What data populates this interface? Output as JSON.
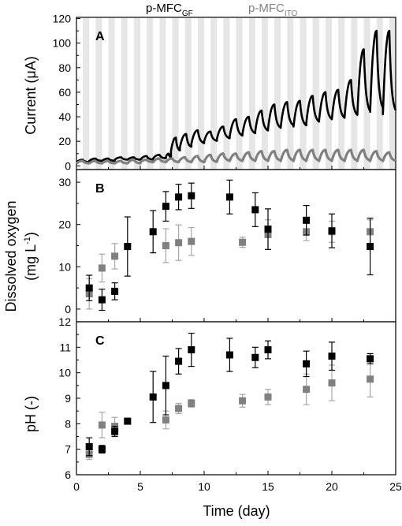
{
  "legend": {
    "series_a": {
      "main": "p-MFC",
      "sub": "GF",
      "color": "#000000"
    },
    "series_b": {
      "main": "p-MFC",
      "sub": "ITO",
      "color": "#808080"
    }
  },
  "x_axis": {
    "label": "Time (day)",
    "ticks": [
      "0",
      "5",
      "10",
      "15",
      "20",
      "25"
    ],
    "lim": [
      0,
      25
    ]
  },
  "colors": {
    "gf": "#000000",
    "ito": "#808080",
    "ito_error": "#a6a6a6",
    "light_band": "#e6e6e6"
  },
  "panels": [
    {
      "letter": "A",
      "ylabel": "Current (μA)",
      "ylim": [
        -3,
        121
      ],
      "yticks": [
        "0",
        "20",
        "40",
        "60",
        "80",
        "100",
        "120"
      ],
      "background": "alternating light/dark day-night bands (light periods shaded)"
    },
    {
      "letter": "B",
      "ylabel_line1": "Dissolved oxygen",
      "ylabel_line2": "(mg L",
      "ylabel_sup": "-1",
      "ylabel_close": ")",
      "ylim": [
        -3,
        33
      ],
      "yticks": [
        "0",
        "10",
        "20",
        "30"
      ]
    },
    {
      "letter": "C",
      "ylabel": "pH (-)",
      "ylim": [
        6,
        12
      ],
      "yticks": [
        "6",
        "7",
        "8",
        "9",
        "10",
        "11",
        "12"
      ]
    }
  ],
  "chart_data": [
    {
      "type": "line",
      "panel": "A",
      "xlabel": "Time (day)",
      "ylabel": "Current (μA)",
      "xlim": [
        0,
        25
      ],
      "ylim": [
        -3,
        121
      ],
      "note": "cyclic day/night current; values are the envelope of each light/dark cycle",
      "series": [
        {
          "name": "p-MFC_GF",
          "cycles": [
            {
              "start": 0.0,
              "peak": 5,
              "end": 3
            },
            {
              "start": 1.0,
              "peak": 6,
              "end": 4
            },
            {
              "start": 2.0,
              "peak": 6,
              "end": 4
            },
            {
              "start": 3.0,
              "peak": 7,
              "end": 5
            },
            {
              "start": 4.0,
              "peak": 7,
              "end": 5
            },
            {
              "start": 5.0,
              "peak": 8,
              "end": 5
            },
            {
              "start": 6.0,
              "peak": 9,
              "end": 6
            },
            {
              "start": 7.0,
              "peak": 10,
              "end": 7
            },
            {
              "start": 7.4,
              "peak": 23,
              "end": 12
            },
            {
              "start": 8.1,
              "peak": 26,
              "end": 15
            },
            {
              "start": 9.0,
              "peak": 29,
              "end": 18
            },
            {
              "start": 10.0,
              "peak": 28,
              "end": 20
            },
            {
              "start": 11.0,
              "peak": 32,
              "end": 22
            },
            {
              "start": 12.0,
              "peak": 38,
              "end": 24
            },
            {
              "start": 13.0,
              "peak": 40,
              "end": 26
            },
            {
              "start": 14.0,
              "peak": 45,
              "end": 28
            },
            {
              "start": 15.0,
              "peak": 50,
              "end": 30
            },
            {
              "start": 16.0,
              "peak": 52,
              "end": 32
            },
            {
              "start": 17.0,
              "peak": 53,
              "end": 32
            },
            {
              "start": 18.0,
              "peak": 57,
              "end": 35
            },
            {
              "start": 19.0,
              "peak": 60,
              "end": 37
            },
            {
              "start": 20.0,
              "peak": 62,
              "end": 38
            },
            {
              "start": 21.0,
              "peak": 70,
              "end": 40
            },
            {
              "start": 22.0,
              "peak": 95,
              "end": 42
            },
            {
              "start": 23.0,
              "peak": 110,
              "end": 44
            },
            {
              "start": 24.0,
              "peak": 110,
              "end": 42
            }
          ]
        },
        {
          "name": "p-MFC_ITO",
          "cycles": [
            {
              "start": 0.0,
              "peak": 4,
              "end": 2
            },
            {
              "start": 1.0,
              "peak": 4,
              "end": 2
            },
            {
              "start": 2.0,
              "peak": 4,
              "end": 2
            },
            {
              "start": 3.0,
              "peak": 4,
              "end": 2
            },
            {
              "start": 4.0,
              "peak": 5,
              "end": 2
            },
            {
              "start": 5.0,
              "peak": 5,
              "end": 3
            },
            {
              "start": 6.0,
              "peak": 6,
              "end": 3
            },
            {
              "start": 7.0,
              "peak": 6,
              "end": 3
            },
            {
              "start": 8.0,
              "peak": 7,
              "end": 3
            },
            {
              "start": 9.0,
              "peak": 8,
              "end": 3
            },
            {
              "start": 10.0,
              "peak": 9,
              "end": 3
            },
            {
              "start": 11.0,
              "peak": 10,
              "end": 4
            },
            {
              "start": 12.0,
              "peak": 10,
              "end": 4
            },
            {
              "start": 13.0,
              "peak": 11,
              "end": 4
            },
            {
              "start": 14.0,
              "peak": 12,
              "end": 4
            },
            {
              "start": 15.0,
              "peak": 12,
              "end": 4
            },
            {
              "start": 16.0,
              "peak": 13,
              "end": 4
            },
            {
              "start": 17.0,
              "peak": 13,
              "end": 4
            },
            {
              "start": 18.0,
              "peak": 13,
              "end": 4
            },
            {
              "start": 19.0,
              "peak": 13,
              "end": 4
            },
            {
              "start": 20.0,
              "peak": 13,
              "end": 4
            },
            {
              "start": 21.0,
              "peak": 13,
              "end": 4
            },
            {
              "start": 22.0,
              "peak": 13,
              "end": 4
            },
            {
              "start": 23.0,
              "peak": 12,
              "end": 4
            },
            {
              "start": 24.0,
              "peak": 11,
              "end": 4
            }
          ]
        }
      ]
    },
    {
      "type": "scatter",
      "panel": "B",
      "xlabel": "Time (day)",
      "ylabel": "Dissolved oxygen (mg L-1)",
      "xlim": [
        0,
        25
      ],
      "ylim": [
        -3,
        33
      ],
      "error_bars": true,
      "series": [
        {
          "name": "p-MFC_GF",
          "points": [
            {
              "x": 1,
              "y": 5.0,
              "err": 3.0
            },
            {
              "x": 2,
              "y": 2.2,
              "err": 2.5
            },
            {
              "x": 3,
              "y": 4.2,
              "err": 2.0
            },
            {
              "x": 4,
              "y": 14.8,
              "err": 7.0
            },
            {
              "x": 6,
              "y": 18.3,
              "err": 5.0
            },
            {
              "x": 7,
              "y": 24.3,
              "err": 3.5
            },
            {
              "x": 8,
              "y": 26.5,
              "err": 3.0
            },
            {
              "x": 9,
              "y": 26.8,
              "err": 3.0
            },
            {
              "x": 12,
              "y": 26.5,
              "err": 4.0
            },
            {
              "x": 14,
              "y": 23.5,
              "err": 4.0
            },
            {
              "x": 15,
              "y": 18.9,
              "err": 4.8
            },
            {
              "x": 18,
              "y": 21.0,
              "err": 3.5
            },
            {
              "x": 20,
              "y": 18.5,
              "err": 4.0
            },
            {
              "x": 23,
              "y": 14.8,
              "err": 6.7
            }
          ]
        },
        {
          "name": "p-MFC_ITO",
          "points": [
            {
              "x": 1,
              "y": 3.6,
              "err": 3.6
            },
            {
              "x": 2,
              "y": 9.7,
              "err": 3.3
            },
            {
              "x": 3,
              "y": 12.5,
              "err": 3.0
            },
            {
              "x": 7,
              "y": 15.0,
              "err": 4.0
            },
            {
              "x": 8,
              "y": 15.7,
              "err": 4.2
            },
            {
              "x": 9,
              "y": 16.0,
              "err": 3.3
            },
            {
              "x": 13,
              "y": 15.8,
              "err": 1.2
            },
            {
              "x": 15,
              "y": 17.6,
              "err": 3.5
            },
            {
              "x": 18,
              "y": 18.3,
              "err": 2.1
            },
            {
              "x": 20,
              "y": 18.3,
              "err": 2.5
            },
            {
              "x": 23,
              "y": 18.3,
              "err": 2.8
            }
          ]
        }
      ]
    },
    {
      "type": "scatter",
      "panel": "C",
      "xlabel": "Time (day)",
      "ylabel": "pH (-)",
      "xlim": [
        0,
        25
      ],
      "ylim": [
        6,
        12
      ],
      "error_bars": true,
      "series": [
        {
          "name": "p-MFC_GF",
          "points": [
            {
              "x": 1,
              "y": 7.1,
              "err": 0.35
            },
            {
              "x": 2,
              "y": 7.0,
              "err": 0.15
            },
            {
              "x": 3,
              "y": 7.7,
              "err": 0.2
            },
            {
              "x": 4,
              "y": 8.1,
              "err": 0.05
            },
            {
              "x": 6,
              "y": 9.05,
              "err": 1.0
            },
            {
              "x": 7,
              "y": 9.5,
              "err": 1.15
            },
            {
              "x": 8,
              "y": 10.45,
              "err": 0.5
            },
            {
              "x": 9,
              "y": 10.9,
              "err": 0.65
            },
            {
              "x": 12,
              "y": 10.7,
              "err": 0.65
            },
            {
              "x": 14,
              "y": 10.6,
              "err": 0.4
            },
            {
              "x": 15,
              "y": 10.9,
              "err": 0.35
            },
            {
              "x": 18,
              "y": 10.35,
              "err": 0.5
            },
            {
              "x": 20,
              "y": 10.65,
              "err": 0.55
            },
            {
              "x": 23,
              "y": 10.55,
              "err": 0.2
            }
          ]
        },
        {
          "name": "p-MFC_ITO",
          "points": [
            {
              "x": 1,
              "y": 6.8,
              "err": 0.2
            },
            {
              "x": 2,
              "y": 7.95,
              "err": 0.5
            },
            {
              "x": 3,
              "y": 7.9,
              "err": 0.35
            },
            {
              "x": 7,
              "y": 8.15,
              "err": 0.35
            },
            {
              "x": 8,
              "y": 8.6,
              "err": 0.2
            },
            {
              "x": 9,
              "y": 8.8,
              "err": 0.15
            },
            {
              "x": 13,
              "y": 8.9,
              "err": 0.25
            },
            {
              "x": 15,
              "y": 9.05,
              "err": 0.3
            },
            {
              "x": 18,
              "y": 9.35,
              "err": 0.6
            },
            {
              "x": 20,
              "y": 9.6,
              "err": 0.7
            },
            {
              "x": 23,
              "y": 9.75,
              "err": 0.7
            }
          ]
        }
      ]
    }
  ]
}
